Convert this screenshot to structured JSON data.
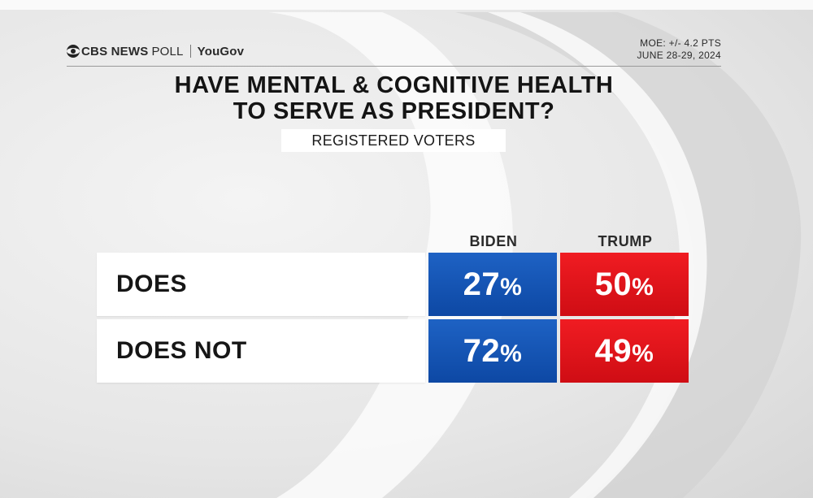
{
  "header": {
    "brand_cbs": "CBS NEWS",
    "brand_poll": "POLL",
    "brand_partner": "YouGov",
    "moe": "MOE: +/- 4.2 PTS",
    "dates": "JUNE 28-29, 2024"
  },
  "chart_data": {
    "type": "table",
    "title_line1": "HAVE MENTAL & COGNITIVE HEALTH",
    "title_line2": "TO SERVE AS PRESIDENT?",
    "subtitle": "REGISTERED VOTERS",
    "columns": [
      "BIDEN",
      "TRUMP"
    ],
    "rows": [
      {
        "label": "DOES",
        "values": [
          27,
          50
        ],
        "display": [
          "27",
          "50"
        ]
      },
      {
        "label": "DOES NOT",
        "values": [
          72,
          49
        ],
        "display": [
          "72",
          "49"
        ]
      }
    ],
    "unit": "%",
    "colors": {
      "BIDEN": "#0d48a4",
      "TRUMP": "#e0131a"
    }
  }
}
